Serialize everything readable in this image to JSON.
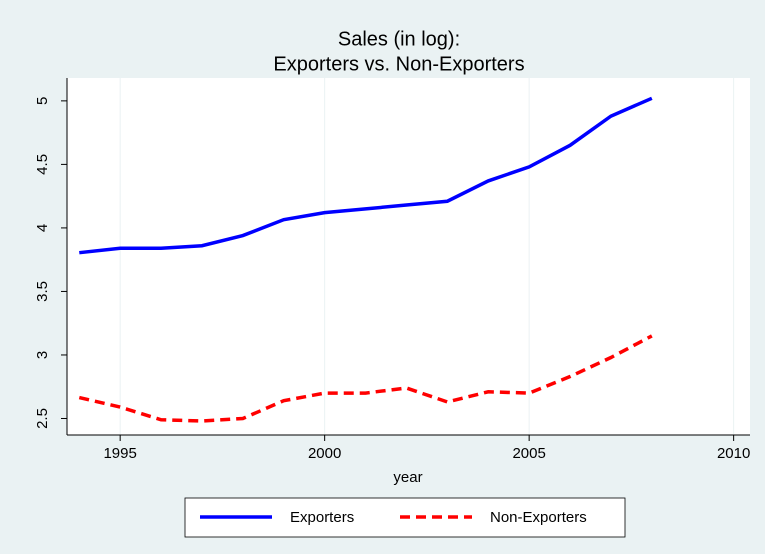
{
  "chart_data": {
    "type": "line",
    "title": [
      "Sales (in log):",
      "Exporters vs. Non-Exporters"
    ],
    "x_label": "year",
    "x": [
      1994,
      1995,
      1996,
      1997,
      1998,
      1999,
      2000,
      2001,
      2002,
      2003,
      2004,
      2005,
      2006,
      2007,
      2008
    ],
    "series": [
      {
        "name": "Exporters",
        "color": "#0000ff",
        "dash": "solid",
        "values": [
          3.805,
          3.84,
          3.84,
          3.86,
          3.94,
          4.065,
          4.12,
          4.15,
          4.18,
          4.21,
          4.37,
          4.48,
          4.65,
          4.88,
          5.02
        ]
      },
      {
        "name": "Non-Exporters",
        "color": "#ff0000",
        "dash": "dashed",
        "values": [
          2.665,
          2.59,
          2.49,
          2.48,
          2.5,
          2.64,
          2.7,
          2.7,
          2.74,
          2.63,
          2.71,
          2.7,
          2.83,
          2.98,
          3.15
        ]
      }
    ],
    "xlim": [
      1993.7,
      2010.4
    ],
    "xticks": [
      1995,
      2000,
      2005,
      2010
    ],
    "ylim": [
      2.37,
      5.18
    ],
    "yticks": [
      2.5,
      3,
      3.5,
      4,
      4.5,
      5
    ],
    "grid": "x",
    "legend": "bottom"
  }
}
